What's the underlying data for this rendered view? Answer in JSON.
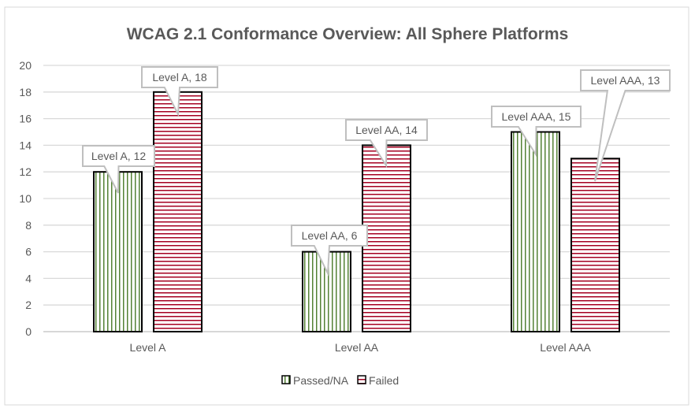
{
  "chart_data": {
    "type": "bar",
    "title": "WCAG 2.1 Conformance Overview: All Sphere Platforms",
    "categories": [
      "Level A",
      "Level AA",
      "Level AAA"
    ],
    "series": [
      {
        "name": "Passed/NA",
        "values": [
          12,
          6,
          15
        ],
        "color": "#548235",
        "pattern": "vertical-stripes"
      },
      {
        "name": "Failed",
        "values": [
          18,
          14,
          13
        ],
        "color": "#a50021",
        "pattern": "horizontal-stripes"
      }
    ],
    "data_labels": [
      [
        "Level A, 12",
        "Level AA, 6",
        "Level AAA, 15"
      ],
      [
        "Level A, 18",
        "Level AA, 14",
        "Level AAA, 13"
      ]
    ],
    "ylim": [
      0,
      20
    ],
    "yticks": [
      0,
      2,
      4,
      6,
      8,
      10,
      12,
      14,
      16,
      18,
      20
    ],
    "grid": true,
    "legend": "bottom"
  }
}
